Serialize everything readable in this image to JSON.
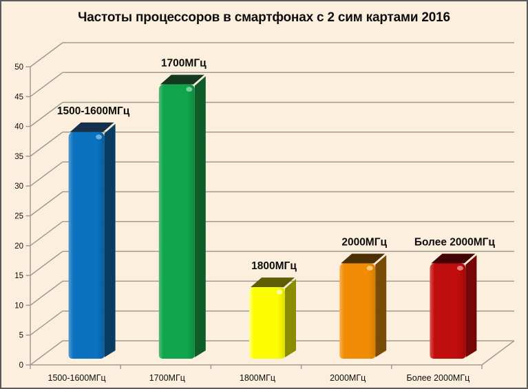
{
  "window": {
    "background_color": "#fcefdd",
    "border_color": "#5a5a5a"
  },
  "chart_data": {
    "type": "bar",
    "projection": "3d",
    "title": "Частоты процессоров в смартфонах с 2 сим картами 2016",
    "categories": [
      "1500-1600МГц",
      "1700МГц",
      "1800МГц",
      "2000МГц",
      "Более 2000МГц"
    ],
    "values": [
      38,
      46,
      12,
      16,
      16
    ],
    "data_labels": [
      "1500-1600МГц",
      "1700МГц",
      "1800МГц",
      "2000МГц",
      "Более 2000МГц"
    ],
    "xlabel": "",
    "ylabel": "",
    "ylim": [
      0,
      50
    ],
    "ytick_step": 5,
    "ytick_labels": [
      "0",
      "5",
      "10",
      "15",
      "20",
      "25",
      "30",
      "35",
      "40",
      "45",
      "50"
    ],
    "grid": true,
    "legend": false,
    "gridline_color": "#9e9b93",
    "axis_text_color": "#0d0d0d",
    "bar_colors": [
      {
        "name": "blue",
        "face": "#0b72c0",
        "light": "#4f9fd8",
        "edge": "#0a5d9e",
        "side": "#0a3c63",
        "top": "#15304a",
        "spark": "#7cc0ea"
      },
      {
        "name": "green",
        "face": "#10a44c",
        "light": "#52bb7c",
        "edge": "#0d8a40",
        "side": "#0f5d29",
        "top": "#133a20",
        "spark": "#8ed9ab"
      },
      {
        "name": "yellow",
        "face": "#fdfd02",
        "light": "#ffff85",
        "edge": "#dede00",
        "side": "#8c8c00",
        "top": "#5e5e04",
        "spark": "#ffffb8"
      },
      {
        "name": "orange",
        "face": "#f08d04",
        "light": "#f8b351",
        "edge": "#d97e03",
        "side": "#7a4b04",
        "top": "#4a3004",
        "spark": "#ffd08a"
      },
      {
        "name": "red",
        "face": "#bf0d0d",
        "light": "#d85555",
        "edge": "#a50909",
        "side": "#750707",
        "top": "#420404",
        "spark": "#ef9090"
      }
    ]
  }
}
